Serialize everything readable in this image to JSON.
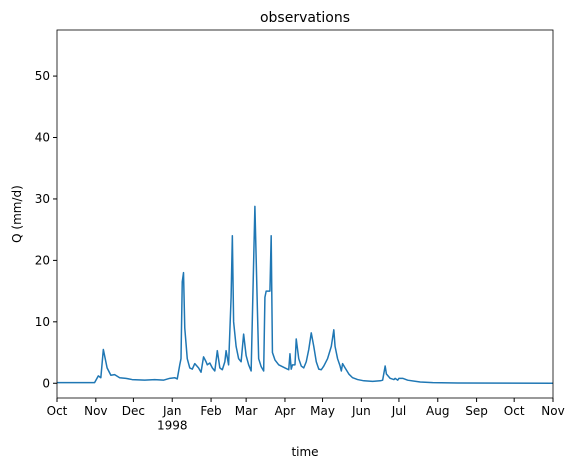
{
  "chart_data": {
    "type": "line",
    "title": "observations",
    "x_label": "time",
    "y_label": "Q (mm/d)",
    "x": [
      0,
      30,
      33,
      35,
      37,
      40,
      43,
      46,
      50,
      55,
      60,
      70,
      78,
      85,
      90,
      94,
      96,
      98,
      99,
      100,
      101,
      102,
      104,
      106,
      108,
      110,
      113,
      115,
      117,
      119,
      120,
      122,
      124,
      126,
      128,
      130,
      132,
      134,
      135,
      137,
      139,
      140,
      141,
      143,
      145,
      147,
      149,
      151,
      153,
      155,
      158,
      160,
      161,
      163,
      165,
      166,
      167,
      168,
      170,
      171,
      172,
      174,
      177,
      182,
      185,
      186,
      187,
      188,
      190,
      191,
      193,
      195,
      197,
      199,
      201,
      203,
      205,
      207,
      209,
      211,
      213,
      216,
      219,
      221,
      222,
      224,
      226,
      227,
      228,
      230,
      233,
      236,
      240,
      245,
      252,
      258,
      260,
      262,
      263,
      266,
      269,
      270,
      272,
      273,
      276,
      280,
      290,
      300,
      320,
      396
    ],
    "series": [
      {
        "name": "observations",
        "color": "#1f77b4",
        "values": [
          0.1,
          0.1,
          1.2,
          0.9,
          5.5,
          2.5,
          1.3,
          1.4,
          0.9,
          0.8,
          0.6,
          0.5,
          0.6,
          0.5,
          0.8,
          0.9,
          0.7,
          3,
          4,
          16.5,
          18,
          9,
          4,
          2.5,
          2.3,
          3.2,
          2.5,
          1.8,
          4.3,
          3.5,
          3,
          3.3,
          2.5,
          2,
          5.3,
          2.5,
          2.2,
          3.5,
          5.3,
          3,
          14,
          24,
          10,
          6,
          4,
          3.5,
          8,
          4.5,
          3,
          2,
          28.8,
          12,
          4,
          2.7,
          2,
          14,
          15,
          15,
          15,
          24,
          5,
          3.8,
          3,
          2.5,
          2.2,
          4.8,
          2.3,
          3,
          3,
          7.2,
          4,
          2.8,
          2.5,
          3.5,
          5.5,
          8.2,
          6,
          3.5,
          2.3,
          2.2,
          2.8,
          4,
          6,
          8.7,
          6,
          4,
          2.8,
          2,
          3.2,
          2.5,
          1.5,
          0.9,
          0.6,
          0.4,
          0.3,
          0.4,
          0.5,
          2.8,
          1.5,
          0.8,
          0.6,
          0.8,
          0.5,
          0.8,
          0.8,
          0.5,
          0.2,
          0.1,
          0.05,
          0
        ]
      }
    ],
    "xlim": [
      0,
      396
    ],
    "xticks": [
      {
        "value": 0,
        "label": "Oct"
      },
      {
        "value": 31,
        "label": "Nov"
      },
      {
        "value": 61,
        "label": "Dec"
      },
      {
        "value": 92,
        "label": "Jan\n1998"
      },
      {
        "value": 123,
        "label": "Feb"
      },
      {
        "value": 151,
        "label": "Mar"
      },
      {
        "value": 182,
        "label": "Apr"
      },
      {
        "value": 212,
        "label": "May"
      },
      {
        "value": 243,
        "label": "Jun"
      },
      {
        "value": 273,
        "label": "Jul"
      },
      {
        "value": 304,
        "label": "Aug"
      },
      {
        "value": 335,
        "label": "Sep"
      },
      {
        "value": 365,
        "label": "Oct"
      },
      {
        "value": 396,
        "label": "Nov"
      }
    ],
    "ylim": [
      -2.4,
      57.5
    ],
    "yticks": [
      0,
      10,
      20,
      30,
      40,
      50
    ],
    "grid": false
  }
}
